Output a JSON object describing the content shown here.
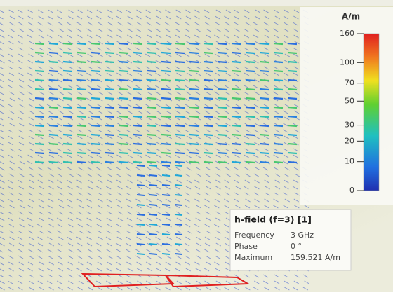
{
  "legend": {
    "unit": "A/m",
    "ticks": [
      160,
      100,
      70,
      50,
      30,
      20,
      10,
      0
    ]
  },
  "info": {
    "title": "h-field (f=3) [1]",
    "rows": [
      [
        "Frequency",
        "3 GHz"
      ],
      [
        "Phase",
        "0 °"
      ],
      [
        "Maximum",
        "159.521 A/m"
      ]
    ]
  }
}
